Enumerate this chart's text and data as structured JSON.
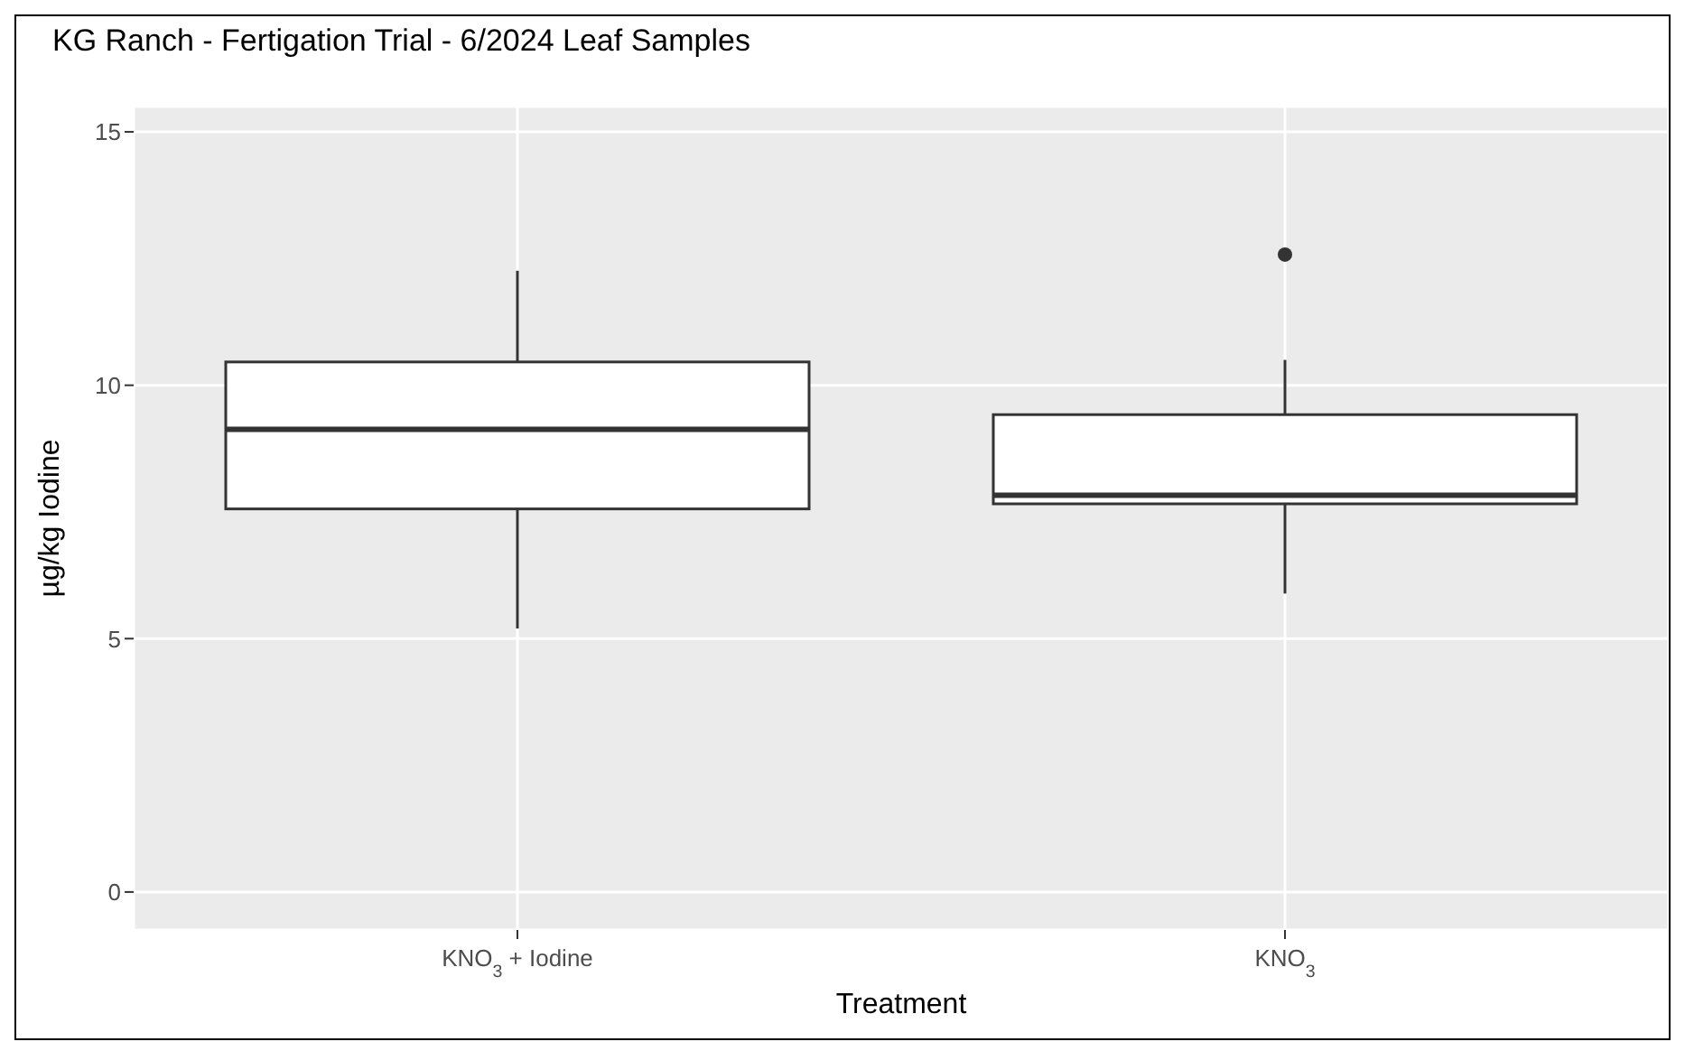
{
  "chart_data": {
    "type": "box",
    "title": "KG Ranch - Fertigation Trial - 6/2024 Leaf Samples",
    "xlabel": "Treatment",
    "ylabel": "µg/kg Iodine",
    "categories": [
      "KNO$_{3}$ + Iodine",
      "KNO$_{3}$"
    ],
    "boxes": [
      {
        "low": 5.2,
        "q1": 7.56,
        "median": 9.13,
        "q3": 10.46,
        "high": 12.26
      },
      {
        "low": 5.89,
        "q1": 7.66,
        "median": 7.83,
        "q3": 9.42,
        "high": 10.5,
        "outliers": [
          12.58
        ]
      }
    ],
    "color": "#ffffff",
    "ylim": [
      -0.75,
      15.5
    ],
    "yticks": [
      0,
      5,
      10,
      15
    ],
    "grid": true
  }
}
